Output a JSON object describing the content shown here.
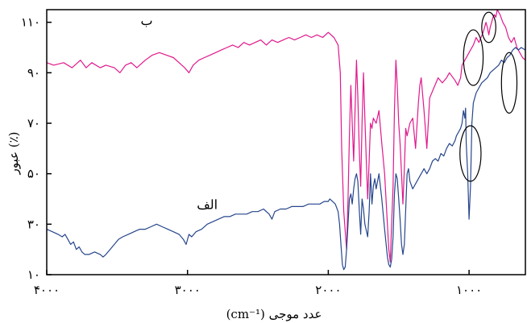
{
  "chart_data": {
    "type": "line",
    "xlabel": "(cm⁻¹) عدد موجی",
    "ylabel": "عبور (٪)",
    "xlim": [
      4000,
      600
    ],
    "ylim": [
      10,
      115
    ],
    "x_ticks": [
      4000,
      3000,
      2000,
      1000
    ],
    "x_tick_labels": [
      "۴۰۰۰",
      "۳۰۰۰",
      "۲۰۰۰",
      "۱۰۰۰"
    ],
    "y_ticks": [
      10,
      30,
      50,
      70,
      90,
      110
    ],
    "y_tick_labels": [
      "۱۰",
      "۳۰",
      "۵۰",
      "۷۰",
      "۹۰",
      "۱۱۰"
    ],
    "grid": false,
    "series": [
      {
        "name": "ب",
        "color": "#e0198c",
        "points": [
          [
            4000,
            94
          ],
          [
            3950,
            93
          ],
          [
            3880,
            94
          ],
          [
            3820,
            92
          ],
          [
            3760,
            95
          ],
          [
            3720,
            92
          ],
          [
            3680,
            94
          ],
          [
            3620,
            92
          ],
          [
            3580,
            93
          ],
          [
            3520,
            92
          ],
          [
            3480,
            90
          ],
          [
            3440,
            93
          ],
          [
            3400,
            94
          ],
          [
            3360,
            92
          ],
          [
            3300,
            95
          ],
          [
            3250,
            97
          ],
          [
            3200,
            98
          ],
          [
            3150,
            97
          ],
          [
            3100,
            96
          ],
          [
            3060,
            94
          ],
          [
            3020,
            92
          ],
          [
            2990,
            90
          ],
          [
            2960,
            93
          ],
          [
            2920,
            95
          ],
          [
            2880,
            96
          ],
          [
            2840,
            97
          ],
          [
            2800,
            98
          ],
          [
            2760,
            99
          ],
          [
            2720,
            100
          ],
          [
            2680,
            101
          ],
          [
            2640,
            100
          ],
          [
            2600,
            102
          ],
          [
            2560,
            101
          ],
          [
            2520,
            102
          ],
          [
            2480,
            103
          ],
          [
            2440,
            101
          ],
          [
            2400,
            103
          ],
          [
            2360,
            102
          ],
          [
            2320,
            103
          ],
          [
            2280,
            104
          ],
          [
            2240,
            103
          ],
          [
            2200,
            104
          ],
          [
            2160,
            105
          ],
          [
            2120,
            104
          ],
          [
            2080,
            105
          ],
          [
            2040,
            104
          ],
          [
            2000,
            106
          ],
          [
            1960,
            104
          ],
          [
            1930,
            101
          ],
          [
            1915,
            90
          ],
          [
            1905,
            60
          ],
          [
            1890,
            35
          ],
          [
            1870,
            20
          ],
          [
            1860,
            40
          ],
          [
            1850,
            65
          ],
          [
            1840,
            85
          ],
          [
            1830,
            70
          ],
          [
            1820,
            55
          ],
          [
            1810,
            75
          ],
          [
            1800,
            95
          ],
          [
            1790,
            80
          ],
          [
            1780,
            60
          ],
          [
            1770,
            45
          ],
          [
            1760,
            70
          ],
          [
            1750,
            90
          ],
          [
            1740,
            72
          ],
          [
            1730,
            55
          ],
          [
            1720,
            40
          ],
          [
            1710,
            55
          ],
          [
            1700,
            70
          ],
          [
            1690,
            68
          ],
          [
            1680,
            72
          ],
          [
            1660,
            70
          ],
          [
            1640,
            75
          ],
          [
            1620,
            62
          ],
          [
            1600,
            50
          ],
          [
            1585,
            35
          ],
          [
            1570,
            20
          ],
          [
            1560,
            15
          ],
          [
            1550,
            30
          ],
          [
            1540,
            45
          ],
          [
            1530,
            75
          ],
          [
            1520,
            95
          ],
          [
            1510,
            85
          ],
          [
            1500,
            70
          ],
          [
            1490,
            62
          ],
          [
            1480,
            50
          ],
          [
            1470,
            38
          ],
          [
            1460,
            52
          ],
          [
            1450,
            68
          ],
          [
            1440,
            65
          ],
          [
            1420,
            70
          ],
          [
            1400,
            72
          ],
          [
            1380,
            60
          ],
          [
            1360,
            78
          ],
          [
            1350,
            85
          ],
          [
            1340,
            88
          ],
          [
            1320,
            75
          ],
          [
            1300,
            60
          ],
          [
            1290,
            70
          ],
          [
            1280,
            80
          ],
          [
            1250,
            84
          ],
          [
            1220,
            88
          ],
          [
            1190,
            86
          ],
          [
            1160,
            88
          ],
          [
            1140,
            90
          ],
          [
            1100,
            87
          ],
          [
            1080,
            85
          ],
          [
            1060,
            88
          ],
          [
            1050,
            93
          ],
          [
            1030,
            95
          ],
          [
            1010,
            97
          ],
          [
            990,
            99
          ],
          [
            970,
            101
          ],
          [
            950,
            104
          ],
          [
            930,
            102
          ],
          [
            900,
            106
          ],
          [
            880,
            110
          ],
          [
            870,
            108
          ],
          [
            860,
            105
          ],
          [
            850,
            108
          ],
          [
            840,
            110
          ],
          [
            830,
            112
          ],
          [
            820,
            113
          ],
          [
            810,
            112
          ],
          [
            800,
            115
          ],
          [
            780,
            113
          ],
          [
            760,
            110
          ],
          [
            740,
            108
          ],
          [
            720,
            104
          ],
          [
            700,
            102
          ],
          [
            680,
            104
          ],
          [
            660,
            100
          ],
          [
            640,
            98
          ],
          [
            620,
            96
          ],
          [
            600,
            95
          ]
        ]
      },
      {
        "name": "الف",
        "color": "#26468c",
        "points": [
          [
            4000,
            28
          ],
          [
            3960,
            27
          ],
          [
            3920,
            26
          ],
          [
            3890,
            25
          ],
          [
            3870,
            26
          ],
          [
            3850,
            24
          ],
          [
            3830,
            22
          ],
          [
            3810,
            23
          ],
          [
            3790,
            20
          ],
          [
            3770,
            21
          ],
          [
            3750,
            19
          ],
          [
            3730,
            18
          ],
          [
            3700,
            18
          ],
          [
            3660,
            19
          ],
          [
            3620,
            18
          ],
          [
            3600,
            17
          ],
          [
            3580,
            18
          ],
          [
            3550,
            20
          ],
          [
            3520,
            22
          ],
          [
            3490,
            24
          ],
          [
            3460,
            25
          ],
          [
            3420,
            26
          ],
          [
            3380,
            27
          ],
          [
            3340,
            28
          ],
          [
            3300,
            28
          ],
          [
            3260,
            29
          ],
          [
            3220,
            30
          ],
          [
            3180,
            29
          ],
          [
            3140,
            28
          ],
          [
            3100,
            27
          ],
          [
            3060,
            26
          ],
          [
            3030,
            24
          ],
          [
            3010,
            22
          ],
          [
            2990,
            26
          ],
          [
            2970,
            25
          ],
          [
            2940,
            27
          ],
          [
            2900,
            28
          ],
          [
            2860,
            30
          ],
          [
            2820,
            31
          ],
          [
            2780,
            32
          ],
          [
            2740,
            33
          ],
          [
            2700,
            33
          ],
          [
            2660,
            34
          ],
          [
            2620,
            34
          ],
          [
            2580,
            34
          ],
          [
            2540,
            35
          ],
          [
            2500,
            35
          ],
          [
            2460,
            36
          ],
          [
            2420,
            34
          ],
          [
            2400,
            32
          ],
          [
            2380,
            35
          ],
          [
            2340,
            36
          ],
          [
            2300,
            36
          ],
          [
            2260,
            37
          ],
          [
            2220,
            37
          ],
          [
            2180,
            37
          ],
          [
            2140,
            38
          ],
          [
            2100,
            38
          ],
          [
            2060,
            38
          ],
          [
            2030,
            39
          ],
          [
            2000,
            39
          ],
          [
            1990,
            40
          ],
          [
            1970,
            39
          ],
          [
            1950,
            38
          ],
          [
            1930,
            35
          ],
          [
            1920,
            30
          ],
          [
            1910,
            22
          ],
          [
            1900,
            14
          ],
          [
            1890,
            12
          ],
          [
            1880,
            13
          ],
          [
            1870,
            20
          ],
          [
            1860,
            30
          ],
          [
            1850,
            40
          ],
          [
            1840,
            42
          ],
          [
            1830,
            38
          ],
          [
            1820,
            44
          ],
          [
            1810,
            48
          ],
          [
            1800,
            50
          ],
          [
            1790,
            47
          ],
          [
            1780,
            36
          ],
          [
            1770,
            26
          ],
          [
            1760,
            40
          ],
          [
            1750,
            36
          ],
          [
            1740,
            30
          ],
          [
            1720,
            25
          ],
          [
            1710,
            35
          ],
          [
            1700,
            50
          ],
          [
            1690,
            38
          ],
          [
            1680,
            45
          ],
          [
            1670,
            48
          ],
          [
            1660,
            44
          ],
          [
            1640,
            50
          ],
          [
            1620,
            40
          ],
          [
            1600,
            28
          ],
          [
            1580,
            17
          ],
          [
            1570,
            14
          ],
          [
            1560,
            13
          ],
          [
            1550,
            16
          ],
          [
            1540,
            25
          ],
          [
            1530,
            42
          ],
          [
            1520,
            50
          ],
          [
            1510,
            48
          ],
          [
            1500,
            40
          ],
          [
            1490,
            32
          ],
          [
            1480,
            22
          ],
          [
            1470,
            18
          ],
          [
            1460,
            22
          ],
          [
            1450,
            36
          ],
          [
            1440,
            50
          ],
          [
            1430,
            52
          ],
          [
            1420,
            47
          ],
          [
            1400,
            44
          ],
          [
            1380,
            46
          ],
          [
            1360,
            48
          ],
          [
            1340,
            50
          ],
          [
            1320,
            52
          ],
          [
            1300,
            50
          ],
          [
            1280,
            52
          ],
          [
            1260,
            55
          ],
          [
            1240,
            56
          ],
          [
            1220,
            55
          ],
          [
            1200,
            58
          ],
          [
            1180,
            57
          ],
          [
            1160,
            60
          ],
          [
            1140,
            62
          ],
          [
            1120,
            61
          ],
          [
            1100,
            63
          ],
          [
            1090,
            65
          ],
          [
            1070,
            67
          ],
          [
            1060,
            68
          ],
          [
            1050,
            70
          ],
          [
            1040,
            75
          ],
          [
            1030,
            72
          ],
          [
            1025,
            76
          ],
          [
            1020,
            62
          ],
          [
            1010,
            50
          ],
          [
            1000,
            32
          ],
          [
            990,
            45
          ],
          [
            980,
            70
          ],
          [
            970,
            78
          ],
          [
            960,
            80
          ],
          [
            950,
            82
          ],
          [
            930,
            84
          ],
          [
            910,
            86
          ],
          [
            890,
            87
          ],
          [
            870,
            88
          ],
          [
            850,
            90
          ],
          [
            830,
            91
          ],
          [
            810,
            92
          ],
          [
            790,
            93
          ],
          [
            770,
            95
          ],
          [
            750,
            94
          ],
          [
            730,
            96
          ],
          [
            710,
            97
          ],
          [
            690,
            99
          ],
          [
            670,
            100
          ],
          [
            650,
            99
          ],
          [
            630,
            100
          ],
          [
            600,
            99
          ]
        ]
      }
    ],
    "series_labels": [
      {
        "text": "ب",
        "x": 3290,
        "y": 109
      },
      {
        "text": "الف",
        "x": 2860,
        "y": 36
      }
    ],
    "annotations": {
      "type": "ellipse-markers",
      "count": 4,
      "ellipses": [
        {
          "cx": 970,
          "cy": 96,
          "rx": 70,
          "ry": 11
        },
        {
          "cx": 860,
          "cy": 108,
          "rx": 50,
          "ry": 6
        },
        {
          "cx": 715,
          "cy": 86,
          "rx": 55,
          "ry": 12
        },
        {
          "cx": 990,
          "cy": 58,
          "rx": 75,
          "ry": 11
        }
      ]
    }
  }
}
